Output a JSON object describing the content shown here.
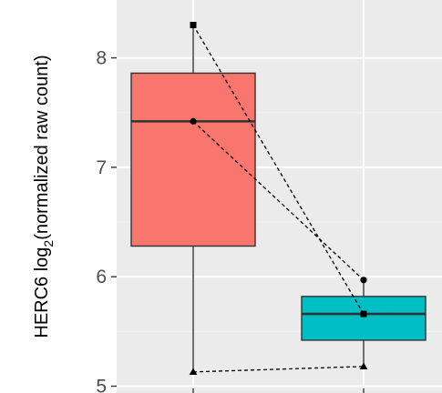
{
  "chart_data": {
    "type": "box",
    "ylabel": {
      "prefix": "HERC6 log",
      "subscript": "2",
      "suffix": "(normalized raw count)"
    },
    "ylim": [
      5,
      8.5
    ],
    "yticks": [
      5,
      6,
      7,
      8
    ],
    "ytick_labels": [
      "5",
      "6",
      "7",
      "8"
    ],
    "xtick_labels": [
      "",
      ""
    ],
    "grid": true,
    "colors": {
      "panel_background": "#ebebeb",
      "grid_major": "#ffffff",
      "box_1": "#f8766d",
      "box_2": "#00bfc4",
      "box_line": "#333333",
      "point": "#000000"
    },
    "boxes": [
      {
        "group": 1,
        "color": "#f8766d",
        "min": 5.13,
        "q1": 6.28,
        "median": 7.42,
        "q3": 7.86,
        "max": 8.3
      },
      {
        "group": 2,
        "color": "#00bfc4",
        "min": 5.18,
        "q1": 5.42,
        "median": 5.66,
        "q3": 5.82,
        "max": 5.97
      }
    ],
    "series": [
      {
        "marker": "square",
        "values": [
          8.3,
          5.66
        ]
      },
      {
        "marker": "circle",
        "values": [
          7.42,
          5.97
        ]
      },
      {
        "marker": "triangle",
        "values": [
          5.13,
          5.18
        ]
      }
    ]
  }
}
